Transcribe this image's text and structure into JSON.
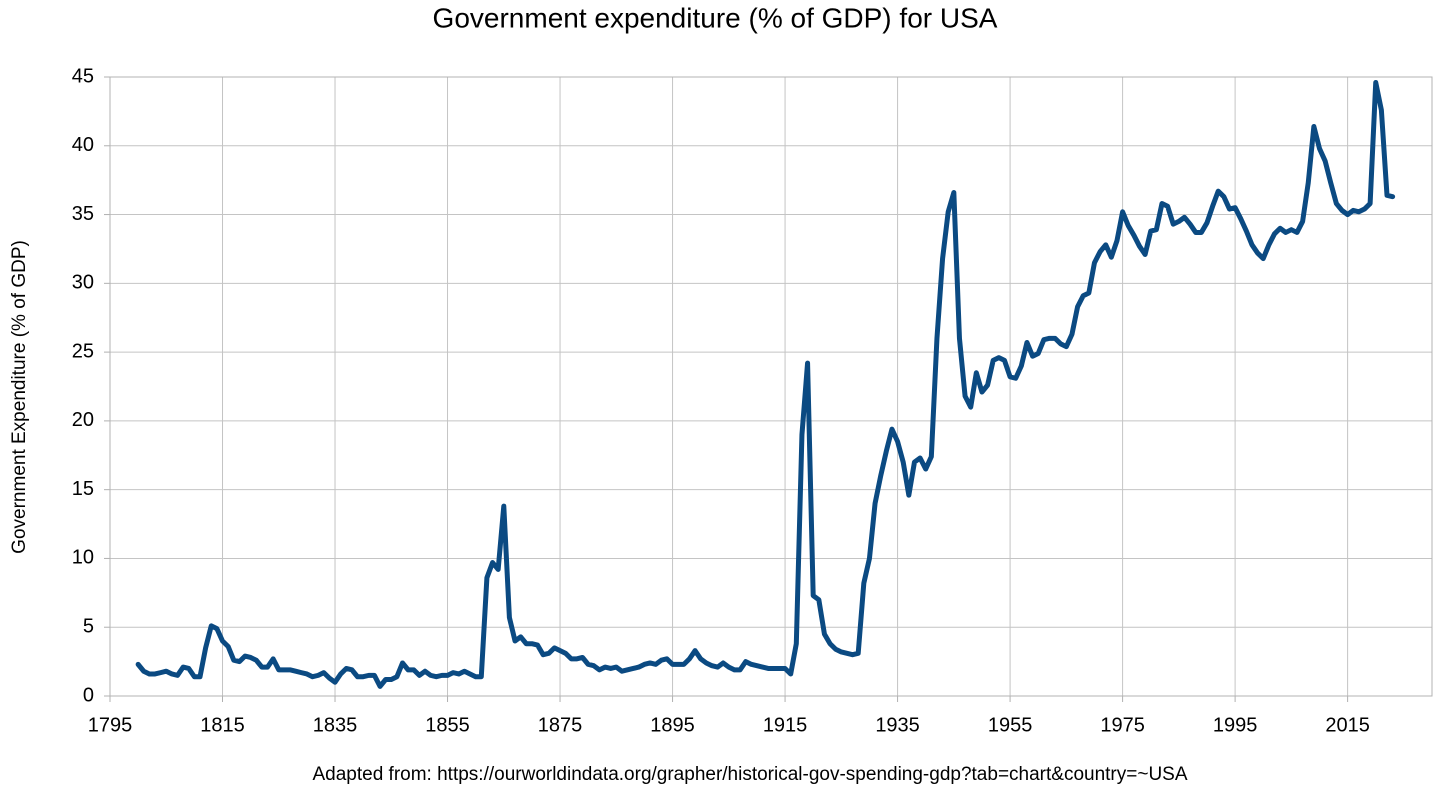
{
  "chart_data": {
    "type": "line",
    "title": "Government expenditure (% of GDP) for USA",
    "y_label": "Government Expenditure (% of GDP)",
    "source": "Adapted from: https://ourworldindata.org/grapher/historical-gov-spending-gdp?tab=chart&country=~USA",
    "color": "#0b4a82",
    "grid": true,
    "xlim": [
      1795,
      2030
    ],
    "xticks": [
      1795,
      1815,
      1835,
      1855,
      1875,
      1895,
      1915,
      1935,
      1955,
      1975,
      1995,
      2015
    ],
    "ylim": [
      0,
      45
    ],
    "yticks": [
      0,
      5,
      10,
      15,
      20,
      25,
      30,
      35,
      40,
      45
    ],
    "x": [
      1800,
      1801,
      1802,
      1803,
      1804,
      1805,
      1806,
      1807,
      1808,
      1809,
      1810,
      1811,
      1812,
      1813,
      1814,
      1815,
      1816,
      1817,
      1818,
      1819,
      1820,
      1821,
      1822,
      1823,
      1824,
      1825,
      1826,
      1827,
      1828,
      1829,
      1830,
      1831,
      1832,
      1833,
      1834,
      1835,
      1836,
      1837,
      1838,
      1839,
      1840,
      1841,
      1842,
      1843,
      1844,
      1845,
      1846,
      1847,
      1848,
      1849,
      1850,
      1851,
      1852,
      1853,
      1854,
      1855,
      1856,
      1857,
      1858,
      1859,
      1860,
      1861,
      1862,
      1863,
      1864,
      1865,
      1866,
      1867,
      1868,
      1869,
      1870,
      1871,
      1872,
      1873,
      1874,
      1875,
      1876,
      1877,
      1878,
      1879,
      1880,
      1881,
      1882,
      1883,
      1884,
      1885,
      1886,
      1887,
      1888,
      1889,
      1890,
      1891,
      1892,
      1893,
      1894,
      1895,
      1896,
      1897,
      1898,
      1899,
      1900,
      1901,
      1902,
      1903,
      1904,
      1905,
      1906,
      1907,
      1908,
      1909,
      1910,
      1911,
      1912,
      1913,
      1914,
      1915,
      1916,
      1917,
      1918,
      1919,
      1920,
      1921,
      1922,
      1923,
      1924,
      1925,
      1926,
      1927,
      1928,
      1929,
      1930,
      1931,
      1932,
      1933,
      1934,
      1935,
      1936,
      1937,
      1938,
      1939,
      1940,
      1941,
      1942,
      1943,
      1944,
      1945,
      1946,
      1947,
      1948,
      1949,
      1950,
      1951,
      1952,
      1953,
      1954,
      1955,
      1956,
      1957,
      1958,
      1959,
      1960,
      1961,
      1962,
      1963,
      1964,
      1965,
      1966,
      1967,
      1968,
      1969,
      1970,
      1971,
      1972,
      1973,
      1974,
      1975,
      1976,
      1977,
      1978,
      1979,
      1980,
      1981,
      1982,
      1983,
      1984,
      1985,
      1986,
      1987,
      1988,
      1989,
      1990,
      1991,
      1992,
      1993,
      1994,
      1995,
      1996,
      1997,
      1998,
      1999,
      2000,
      2001,
      2002,
      2003,
      2004,
      2005,
      2006,
      2007,
      2008,
      2009,
      2010,
      2011,
      2012,
      2013,
      2014,
      2015,
      2016,
      2017,
      2018,
      2019,
      2020,
      2021,
      2022,
      2023
    ],
    "values": [
      2.3,
      1.8,
      1.6,
      1.6,
      1.7,
      1.8,
      1.6,
      1.5,
      2.1,
      2.0,
      1.4,
      1.4,
      3.5,
      5.1,
      4.9,
      4.0,
      3.6,
      2.6,
      2.5,
      2.9,
      2.8,
      2.6,
      2.1,
      2.1,
      2.7,
      1.9,
      1.9,
      1.9,
      1.8,
      1.7,
      1.6,
      1.4,
      1.5,
      1.7,
      1.3,
      1.0,
      1.6,
      2.0,
      1.9,
      1.4,
      1.4,
      1.5,
      1.5,
      0.7,
      1.2,
      1.2,
      1.4,
      2.4,
      1.9,
      1.9,
      1.5,
      1.8,
      1.5,
      1.4,
      1.5,
      1.5,
      1.7,
      1.6,
      1.8,
      1.6,
      1.4,
      1.4,
      8.6,
      9.7,
      9.2,
      13.8,
      5.7,
      4.0,
      4.3,
      3.8,
      3.8,
      3.7,
      3.0,
      3.1,
      3.5,
      3.3,
      3.1,
      2.7,
      2.7,
      2.8,
      2.3,
      2.2,
      1.9,
      2.1,
      2.0,
      2.1,
      1.8,
      1.9,
      2.0,
      2.1,
      2.3,
      2.4,
      2.3,
      2.6,
      2.7,
      2.3,
      2.3,
      2.3,
      2.7,
      3.3,
      2.7,
      2.4,
      2.2,
      2.1,
      2.4,
      2.1,
      1.9,
      1.9,
      2.5,
      2.3,
      2.2,
      2.1,
      2.0,
      2.0,
      2.0,
      2.0,
      1.6,
      3.8,
      19.0,
      24.2,
      7.3,
      7.0,
      4.5,
      3.8,
      3.4,
      3.2,
      3.1,
      3.0,
      3.1,
      8.2,
      10.0,
      14.0,
      16.0,
      17.8,
      19.4,
      18.5,
      17.0,
      14.6,
      17.0,
      17.3,
      16.5,
      17.4,
      26.0,
      31.8,
      35.2,
      36.6,
      26.0,
      21.8,
      21.0,
      23.5,
      22.1,
      22.6,
      24.4,
      24.6,
      24.4,
      23.2,
      23.1,
      24.0,
      25.7,
      24.7,
      24.9,
      25.9,
      26.0,
      26.0,
      25.6,
      25.4,
      26.3,
      28.3,
      29.1,
      29.3,
      31.5,
      32.3,
      32.8,
      31.9,
      33.1,
      35.2,
      34.2,
      33.5,
      32.7,
      32.1,
      33.8,
      33.9,
      35.8,
      35.6,
      34.3,
      34.5,
      34.8,
      34.3,
      33.7,
      33.7,
      34.4,
      35.6,
      36.7,
      36.3,
      35.4,
      35.5,
      34.7,
      33.8,
      32.8,
      32.2,
      31.8,
      32.8,
      33.6,
      34.0,
      33.7,
      33.9,
      33.7,
      34.5,
      37.3,
      41.4,
      39.8,
      38.9,
      37.3,
      35.8,
      35.3,
      35.0,
      35.3,
      35.2,
      35.4,
      35.8,
      44.6,
      42.6,
      36.4,
      36.3
    ]
  }
}
